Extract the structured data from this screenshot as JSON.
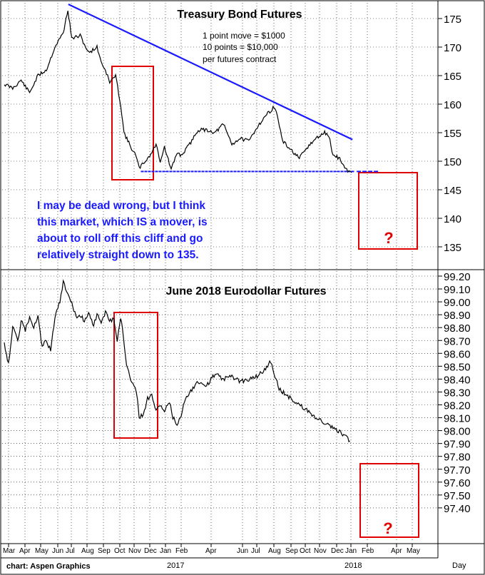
{
  "chart_data": [
    {
      "type": "line",
      "title": "Treasury Bond Futures",
      "notes": [
        "1 point move = $1000",
        "10 points = $10,000",
        "per futures contract"
      ],
      "comment": [
        "I may be dead wrong, but I think",
        "this market, which IS a mover, is",
        "about to roll off this cliff and go",
        "relatively straight down to 135."
      ],
      "ylim": [
        131.5,
        178.5
      ],
      "yticks": [
        "175",
        "170",
        "165",
        "160",
        "155",
        "150",
        "145",
        "140",
        "135"
      ],
      "grid": true,
      "series": [
        {
          "values": [
            [
              0,
              163.5
            ],
            [
              1,
              162.8
            ],
            [
              2,
              164.2
            ],
            [
              3,
              162.0
            ],
            [
              4,
              165.0
            ],
            [
              5,
              166.0
            ],
            [
              6,
              170.0
            ],
            [
              7,
              172.5
            ],
            [
              7.55,
              176.5
            ],
            [
              8,
              171.5
            ],
            [
              9,
              172.0
            ],
            [
              10,
              169.0
            ],
            [
              11,
              170.0
            ],
            [
              11.6,
              167.0
            ],
            [
              12,
              166.0
            ],
            [
              12.5,
              163.8
            ],
            [
              13.2,
              165.0
            ],
            [
              13.8,
              160.0
            ],
            [
              14.2,
              155.0
            ],
            [
              15,
              152.5
            ],
            [
              15.6,
              151.0
            ],
            [
              16,
              148.8
            ],
            [
              17,
              150.5
            ],
            [
              17.5,
              151.5
            ],
            [
              18,
              153.0
            ],
            [
              18.5,
              150.0
            ],
            [
              19,
              152.5
            ],
            [
              19.8,
              148.5
            ],
            [
              20.5,
              151.5
            ],
            [
              21,
              151.0
            ],
            [
              22,
              153.0
            ],
            [
              23,
              155.5
            ],
            [
              24,
              155.5
            ],
            [
              25,
              155.0
            ],
            [
              26,
              156.5
            ],
            [
              27,
              153.0
            ],
            [
              28,
              154.0
            ],
            [
              29,
              153.5
            ],
            [
              30,
              156.0
            ],
            [
              31,
              158.0
            ],
            [
              32,
              159.5
            ],
            [
              32.4,
              158.0
            ],
            [
              33,
              153.5
            ],
            [
              34,
              152.0
            ],
            [
              35,
              150.5
            ],
            [
              36,
              152.5
            ],
            [
              37,
              154.0
            ],
            [
              38,
              155.0
            ],
            [
              38.5,
              154.5
            ],
            [
              39,
              151.0
            ],
            [
              39.8,
              150.5
            ],
            [
              40.5,
              148.5
            ],
            [
              41.2,
              148.0
            ]
          ]
        }
      ],
      "trendline": [
        [
          7.6,
          177.5
        ],
        [
          41.3,
          153.8
        ]
      ],
      "support": {
        "value": 148.2,
        "x_start": 16.2,
        "x_end": 41.5,
        "x_ext_start": 41.8,
        "x_ext_end": 44.4
      },
      "question_mark": "?"
    },
    {
      "type": "line",
      "title": "June 2018 Eurodollar Futures",
      "ylim": [
        97.36,
        99.24
      ],
      "yticks": [
        "99.20",
        "99.10",
        "99.00",
        "98.90",
        "98.80",
        "98.70",
        "98.60",
        "98.50",
        "98.40",
        "98.30",
        "98.20",
        "98.10",
        "98.00",
        "97.90",
        "97.80",
        "97.70",
        "97.60",
        "97.50",
        "97.40"
      ],
      "grid": true,
      "series": [
        {
          "values": [
            [
              0,
              98.68
            ],
            [
              0.5,
              98.52
            ],
            [
              1,
              98.8
            ],
            [
              1.6,
              98.7
            ],
            [
              2,
              98.85
            ],
            [
              2.5,
              98.78
            ],
            [
              3,
              98.88
            ],
            [
              3.5,
              98.8
            ],
            [
              4,
              98.88
            ],
            [
              4.5,
              98.65
            ],
            [
              5,
              98.7
            ],
            [
              5.5,
              98.62
            ],
            [
              6,
              98.88
            ],
            [
              6.6,
              99.0
            ],
            [
              7,
              99.15
            ],
            [
              7.4,
              99.08
            ],
            [
              8,
              99.0
            ],
            [
              8.5,
              98.88
            ],
            [
              9,
              98.9
            ],
            [
              9.5,
              98.85
            ],
            [
              10,
              98.92
            ],
            [
              10.6,
              98.82
            ],
            [
              11,
              98.9
            ],
            [
              11.5,
              98.85
            ],
            [
              12,
              98.92
            ],
            [
              12.6,
              98.85
            ],
            [
              13,
              98.88
            ],
            [
              13.4,
              98.7
            ],
            [
              13.8,
              98.88
            ],
            [
              14,
              98.8
            ],
            [
              14.5,
              98.5
            ],
            [
              15,
              98.4
            ],
            [
              15.4,
              98.36
            ],
            [
              15.8,
              98.25
            ],
            [
              16,
              98.1
            ],
            [
              16.5,
              98.13
            ],
            [
              17,
              98.25
            ],
            [
              17.5,
              98.28
            ],
            [
              18,
              98.15
            ],
            [
              18.5,
              98.2
            ],
            [
              19,
              98.15
            ],
            [
              19.6,
              98.22
            ],
            [
              20,
              98.1
            ],
            [
              20.5,
              98.05
            ],
            [
              21,
              98.12
            ],
            [
              21.5,
              98.26
            ],
            [
              22,
              98.3
            ],
            [
              23,
              98.38
            ],
            [
              24,
              98.35
            ],
            [
              25,
              98.44
            ],
            [
              26,
              98.4
            ],
            [
              27,
              98.42
            ],
            [
              28,
              98.38
            ],
            [
              29,
              98.4
            ],
            [
              30,
              98.42
            ],
            [
              31,
              98.48
            ],
            [
              31.6,
              98.54
            ],
            [
              32,
              98.45
            ],
            [
              32.6,
              98.32
            ],
            [
              33,
              98.3
            ],
            [
              34,
              98.25
            ],
            [
              35,
              98.2
            ],
            [
              36,
              98.15
            ],
            [
              37,
              98.1
            ],
            [
              38,
              98.06
            ],
            [
              39,
              98.02
            ],
            [
              40,
              97.98
            ],
            [
              41,
              97.92
            ]
          ]
        }
      ],
      "question_mark": "?"
    }
  ],
  "x_axis": {
    "months": [
      "Mar",
      "Apr",
      "May",
      "Jun",
      "Jul",
      "Aug",
      "Sep",
      "Oct",
      "Nov",
      "Dec",
      "Jan",
      "Feb",
      "Apr",
      "Jun",
      "Jul",
      "Aug",
      "Sep",
      "Oct",
      "Nov",
      "Dec",
      "Jan",
      "Feb",
      "Apr",
      "May"
    ],
    "years": [
      "2017",
      "2018"
    ],
    "period": "Day"
  },
  "credit": "chart: Aspen Graphics",
  "colors": {
    "price_line": "#000000",
    "trendline": "#1a1aff",
    "comment_text": "#1a1aff",
    "box": "#e00000",
    "question_mark": "#e00000"
  }
}
